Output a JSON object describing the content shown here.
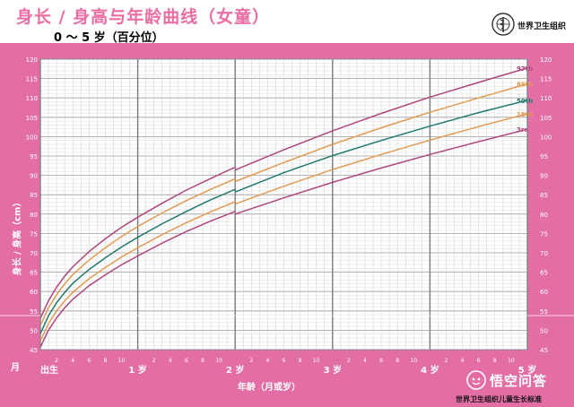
{
  "title": "身长 / 身高与年龄曲线（女童）",
  "subtitle": "0 ～ 5 岁（百分位）",
  "organization": "世界卫生组织",
  "footer": "世界卫生组织儿童生长标准",
  "watermark": "悟空问答",
  "icons": {
    "logo": "who-emblem-icon",
    "watermark": "wukong-icon"
  },
  "colors": {
    "frame": "#e36ea6",
    "title": "#ea6da3",
    "grid_bg": "#ffffff"
  },
  "chart_data": {
    "type": "line",
    "ylabel": "身长 / 身高（cm）",
    "xlabel": "年龄（月或岁）",
    "x_unit_label": "月",
    "xlim": [
      0,
      60
    ],
    "ylim": [
      45,
      120
    ],
    "y_ticks": [
      45,
      50,
      55,
      60,
      65,
      70,
      75,
      80,
      85,
      90,
      95,
      100,
      105,
      110,
      115,
      120
    ],
    "x_year_marks": [
      {
        "month": 0,
        "label": "出生"
      },
      {
        "month": 12,
        "label": "1 岁"
      },
      {
        "month": 24,
        "label": "2 岁"
      },
      {
        "month": 36,
        "label": "3 岁"
      },
      {
        "month": 48,
        "label": "4 岁"
      },
      {
        "month": 60,
        "label": "5 岁"
      }
    ],
    "x_month_ticks": [
      2,
      4,
      6,
      8,
      10
    ],
    "x": [
      0,
      1,
      2,
      3,
      4,
      6,
      8,
      10,
      12,
      15,
      18,
      21,
      24,
      24,
      30,
      36,
      42,
      48,
      54,
      60
    ],
    "series": [
      {
        "name": "97th",
        "color": "#b0457e",
        "values": [
          53.1,
          57.6,
          61.1,
          64.0,
          66.4,
          70.3,
          73.6,
          76.6,
          79.2,
          82.8,
          86.2,
          89.2,
          92.1,
          91.4,
          96.6,
          101.5,
          106.0,
          110.2,
          114.0,
          117.7
        ]
      },
      {
        "name": "85th",
        "color": "#e39a52",
        "values": [
          51.2,
          55.8,
          59.2,
          62.0,
          64.4,
          68.1,
          71.3,
          74.2,
          76.8,
          80.3,
          83.5,
          86.4,
          89.1,
          88.4,
          93.3,
          98.0,
          102.3,
          106.3,
          110.0,
          113.6
        ]
      },
      {
        "name": "50th",
        "color": "#1f7a6d",
        "values": [
          49.1,
          53.7,
          57.1,
          59.8,
          62.1,
          65.7,
          68.7,
          71.5,
          74.0,
          77.5,
          80.7,
          83.7,
          86.4,
          85.7,
          90.7,
          95.1,
          99.0,
          102.7,
          106.2,
          109.4
        ]
      },
      {
        "name": "15th",
        "color": "#e39a52",
        "values": [
          47.2,
          51.7,
          55.0,
          57.6,
          59.8,
          63.3,
          66.2,
          68.9,
          71.3,
          74.7,
          77.8,
          80.6,
          83.2,
          82.6,
          87.2,
          91.5,
          95.4,
          99.1,
          102.6,
          105.9
        ]
      },
      {
        "name": "3rd",
        "color": "#b0457e",
        "values": [
          45.6,
          50.0,
          53.2,
          55.8,
          58.0,
          61.5,
          64.3,
          66.9,
          69.2,
          72.5,
          75.5,
          78.2,
          80.7,
          80.0,
          84.2,
          88.2,
          91.9,
          95.4,
          98.7,
          101.9
        ]
      }
    ]
  }
}
